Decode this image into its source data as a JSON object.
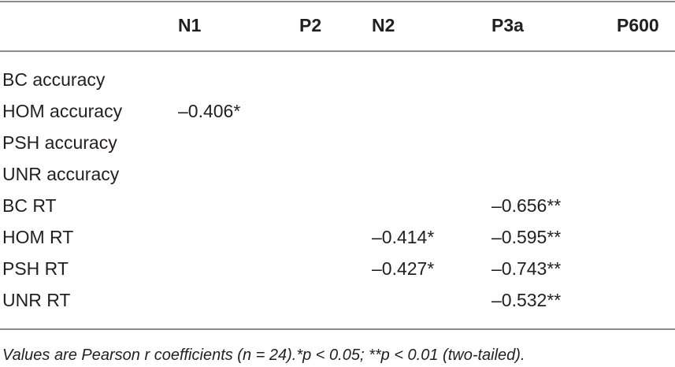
{
  "columns": {
    "n1": "N1",
    "p2": "P2",
    "n2": "N2",
    "p3a": "P3a",
    "p600": "P600"
  },
  "rows": [
    {
      "label": "BC accuracy",
      "n1": "",
      "n2": "",
      "p3a": ""
    },
    {
      "label": "HOM accuracy",
      "n1": "–0.406*",
      "n2": "",
      "p3a": ""
    },
    {
      "label": "PSH accuracy",
      "n1": "",
      "n2": "",
      "p3a": ""
    },
    {
      "label": "UNR accuracy",
      "n1": "",
      "n2": "",
      "p3a": ""
    },
    {
      "label": "BC RT",
      "n1": "",
      "n2": "",
      "p3a": "–0.656**"
    },
    {
      "label": "HOM RT",
      "n1": "",
      "n2": "–0.414*",
      "p3a": "–0.595**"
    },
    {
      "label": "PSH RT",
      "n1": "",
      "n2": "–0.427*",
      "p3a": "–0.743**"
    },
    {
      "label": "UNR RT",
      "n1": "",
      "n2": "",
      "p3a": "–0.532**"
    }
  ],
  "footnote": "Values are Pearson r coefficients (n = 24).*p < 0.05; **p < 0.01 (two-tailed)."
}
